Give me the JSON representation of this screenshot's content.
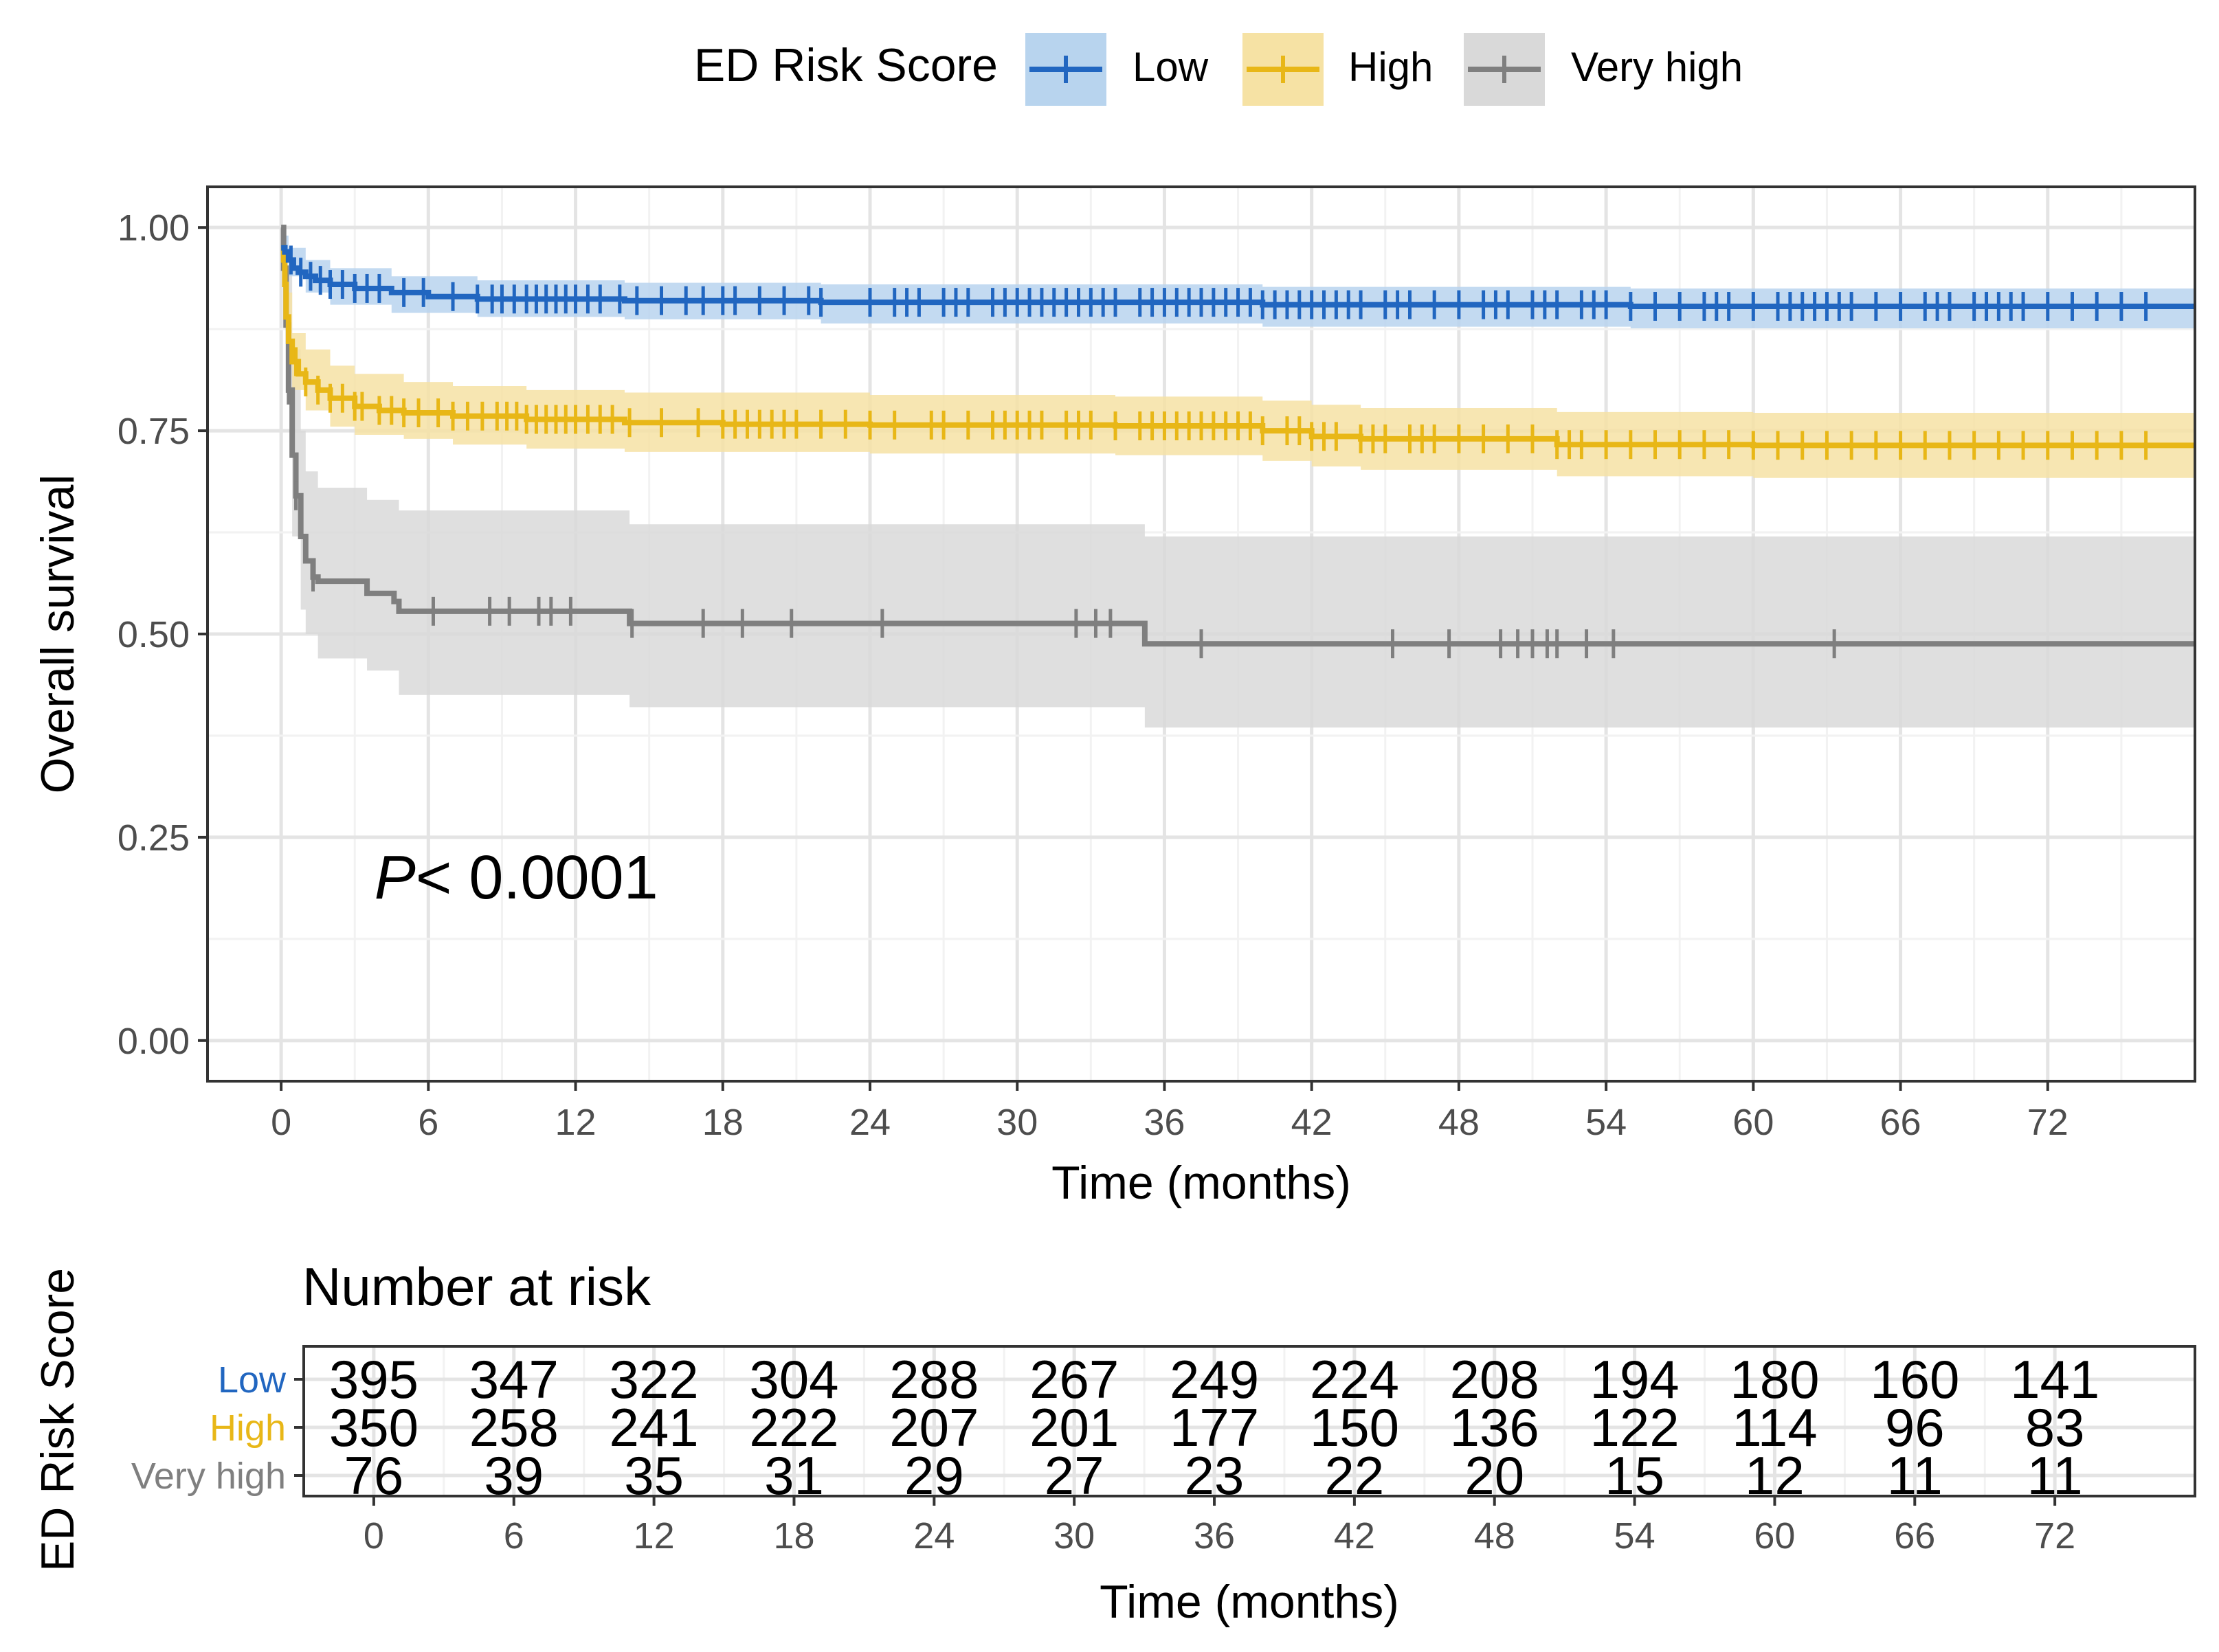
{
  "chart_data": {
    "type": "line",
    "subtype": "kaplan-meier",
    "legend": {
      "title": "ED Risk Score",
      "position": "top",
      "entries": [
        "Low",
        "High",
        "Very high"
      ]
    },
    "xlabel": "Time (months)",
    "ylabel": "Overall survival",
    "xlim": [
      -3,
      78
    ],
    "ylim": [
      -0.05,
      1.05
    ],
    "xticks": [
      0,
      6,
      12,
      18,
      24,
      30,
      36,
      42,
      48,
      54,
      60,
      66,
      72
    ],
    "yticks": [
      0.0,
      0.25,
      0.5,
      0.75,
      1.0
    ],
    "ytick_labels": [
      "0.00",
      "0.25",
      "0.50",
      "0.75",
      "1.00"
    ],
    "annotation": {
      "italic": "P",
      "rest": "< 0.0001",
      "x": 3.8,
      "y": 0.2
    },
    "grid": true,
    "series": [
      {
        "name": "Low",
        "color": "#2166C0",
        "band_color": "#B8D4EE",
        "steps": [
          [
            0,
            0.975
          ],
          [
            0.15,
            0.97
          ],
          [
            0.3,
            0.96
          ],
          [
            0.5,
            0.95
          ],
          [
            0.7,
            0.945
          ],
          [
            1,
            0.94
          ],
          [
            1.4,
            0.935
          ],
          [
            2,
            0.93
          ],
          [
            3,
            0.925
          ],
          [
            4.5,
            0.92
          ],
          [
            6,
            0.915
          ],
          [
            8,
            0.912
          ],
          [
            14,
            0.91
          ],
          [
            22,
            0.908
          ],
          [
            40,
            0.905
          ],
          [
            55,
            0.903
          ],
          [
            78,
            0.903
          ]
        ],
        "band": [
          [
            0,
            0.99,
            0.96
          ],
          [
            0.3,
            0.975,
            0.94
          ],
          [
            1,
            0.96,
            0.92
          ],
          [
            2,
            0.95,
            0.905
          ],
          [
            4.5,
            0.94,
            0.895
          ],
          [
            8,
            0.935,
            0.89
          ],
          [
            14,
            0.932,
            0.887
          ],
          [
            22,
            0.93,
            0.882
          ],
          [
            40,
            0.927,
            0.878
          ],
          [
            55,
            0.925,
            0.876
          ],
          [
            78,
            0.925,
            0.876
          ]
        ],
        "censor_times": [
          0.4,
          0.8,
          1.2,
          1.6,
          2,
          2.5,
          3,
          3.5,
          4,
          5,
          5.8,
          7,
          8,
          8.6,
          9,
          9.5,
          10,
          10.4,
          10.8,
          11.2,
          11.6,
          12,
          12.5,
          13,
          13.8,
          14.5,
          15.5,
          16.5,
          17.2,
          18,
          18.5,
          19.5,
          20.5,
          21.5,
          22,
          24,
          25,
          25.5,
          26,
          27,
          27.5,
          28,
          29,
          29.5,
          30,
          30.5,
          31,
          31.5,
          32,
          32.5,
          33,
          33.5,
          34,
          35,
          35.5,
          36,
          36.5,
          37,
          37.5,
          38,
          38.5,
          39,
          39.5,
          40,
          40.5,
          41,
          41.5,
          42,
          42.5,
          43,
          43.5,
          44,
          45,
          45.5,
          46,
          47,
          48,
          49,
          49.5,
          50,
          51,
          51.5,
          52,
          53,
          53.5,
          54,
          55,
          56,
          57,
          58,
          58.5,
          59,
          60,
          61,
          61.5,
          62,
          62.5,
          63,
          63.5,
          64,
          65,
          66,
          67,
          67.5,
          68,
          69,
          69.5,
          70,
          70.5,
          71,
          72,
          73,
          74,
          75,
          76
        ]
      },
      {
        "name": "High",
        "color": "#E8B717",
        "band_color": "#F6E2A4",
        "steps": [
          [
            0,
            0.975
          ],
          [
            0.1,
            0.96
          ],
          [
            0.15,
            0.93
          ],
          [
            0.2,
            0.89
          ],
          [
            0.3,
            0.86
          ],
          [
            0.45,
            0.835
          ],
          [
            0.7,
            0.82
          ],
          [
            1,
            0.81
          ],
          [
            1.5,
            0.8
          ],
          [
            2,
            0.79
          ],
          [
            3,
            0.78
          ],
          [
            4,
            0.775
          ],
          [
            5,
            0.772
          ],
          [
            7,
            0.768
          ],
          [
            10,
            0.764
          ],
          [
            14,
            0.76
          ],
          [
            18,
            0.758
          ],
          [
            24,
            0.757
          ],
          [
            34,
            0.756
          ],
          [
            40,
            0.75
          ],
          [
            42,
            0.743
          ],
          [
            44,
            0.74
          ],
          [
            52,
            0.733
          ],
          [
            60,
            0.732
          ],
          [
            78,
            0.732
          ]
        ],
        "band": [
          [
            0,
            0.99,
            0.96
          ],
          [
            0.2,
            0.92,
            0.86
          ],
          [
            0.45,
            0.87,
            0.8
          ],
          [
            1,
            0.85,
            0.775
          ],
          [
            2,
            0.83,
            0.755
          ],
          [
            3,
            0.82,
            0.745
          ],
          [
            5,
            0.81,
            0.74
          ],
          [
            7,
            0.805,
            0.733
          ],
          [
            10,
            0.8,
            0.728
          ],
          [
            14,
            0.797,
            0.724
          ],
          [
            24,
            0.794,
            0.722
          ],
          [
            34,
            0.792,
            0.72
          ],
          [
            40,
            0.787,
            0.713
          ],
          [
            42,
            0.782,
            0.706
          ],
          [
            44,
            0.778,
            0.702
          ],
          [
            52,
            0.773,
            0.694
          ],
          [
            60,
            0.772,
            0.692
          ],
          [
            78,
            0.772,
            0.692
          ]
        ],
        "censor_times": [
          0.6,
          1,
          1.5,
          2,
          2.5,
          3,
          3.3,
          4,
          4.5,
          5,
          5.6,
          6.4,
          7,
          7.6,
          8.2,
          8.8,
          9.2,
          9.6,
          10,
          10.4,
          10.8,
          11.2,
          11.6,
          12,
          12.5,
          13,
          13.5,
          14.2,
          15.5,
          17,
          18,
          18.5,
          19,
          19.5,
          20,
          20.5,
          21,
          22,
          23,
          24,
          25,
          26.5,
          27,
          28,
          29,
          29.5,
          30,
          30.5,
          31,
          32,
          32.5,
          33,
          34,
          35,
          35.5,
          36,
          36.5,
          37,
          37.5,
          38,
          38.5,
          39,
          39.5,
          40,
          41,
          41.5,
          42,
          42.5,
          43,
          44,
          44.5,
          45,
          46,
          46.5,
          47,
          48,
          49,
          50,
          51,
          52,
          52.5,
          53,
          54,
          55,
          56,
          57,
          58,
          59,
          60,
          61,
          62,
          63,
          64,
          65,
          66,
          67,
          68,
          69,
          70,
          71,
          72,
          73,
          74,
          75,
          76
        ]
      },
      {
        "name": "Very high",
        "color": "#7F7F7F",
        "band_color": "#D9D9D9",
        "steps": [
          [
            0,
            1.0
          ],
          [
            0.1,
            0.95
          ],
          [
            0.2,
            0.88
          ],
          [
            0.3,
            0.8
          ],
          [
            0.45,
            0.72
          ],
          [
            0.6,
            0.67
          ],
          [
            0.8,
            0.62
          ],
          [
            1,
            0.59
          ],
          [
            1.3,
            0.57
          ],
          [
            1.5,
            0.565
          ],
          [
            3.5,
            0.55
          ],
          [
            4.6,
            0.54
          ],
          [
            4.8,
            0.528
          ],
          [
            14.2,
            0.513
          ],
          [
            35.2,
            0.488
          ],
          [
            78,
            0.488
          ]
        ],
        "band": [
          [
            0,
            1.0,
            0.98
          ],
          [
            0.2,
            0.95,
            0.8
          ],
          [
            0.45,
            0.85,
            0.62
          ],
          [
            0.8,
            0.75,
            0.53
          ],
          [
            1,
            0.7,
            0.5
          ],
          [
            1.5,
            0.68,
            0.47
          ],
          [
            3.5,
            0.665,
            0.455
          ],
          [
            4.8,
            0.652,
            0.425
          ],
          [
            14.2,
            0.635,
            0.41
          ],
          [
            35.2,
            0.62,
            0.385
          ],
          [
            78,
            0.62,
            0.385
          ]
        ],
        "censor_times": [
          0.3,
          0.6,
          1.3,
          6.2,
          8.5,
          9.3,
          10.5,
          11,
          11.8,
          14.3,
          17.2,
          18.8,
          20.8,
          24.5,
          32.4,
          33.2,
          33.8,
          37.5,
          45.3,
          47.6,
          49.7,
          50.4,
          51,
          51.6,
          52,
          53.2,
          54.3,
          63.3
        ]
      }
    ],
    "risk_table": {
      "title": "Number at risk",
      "ylabel": "ED Risk Score",
      "xlabel": "Time (months)",
      "times": [
        0,
        6,
        12,
        18,
        24,
        30,
        36,
        42,
        48,
        54,
        60,
        66,
        72
      ],
      "rows": [
        {
          "name": "Low",
          "color": "#2166C0",
          "values": [
            395,
            347,
            322,
            304,
            288,
            267,
            249,
            224,
            208,
            194,
            180,
            160,
            141
          ]
        },
        {
          "name": "High",
          "color": "#E8B717",
          "values": [
            350,
            258,
            241,
            222,
            207,
            201,
            177,
            150,
            136,
            122,
            114,
            96,
            83
          ]
        },
        {
          "name": "Very high",
          "color": "#7F7F7F",
          "values": [
            76,
            39,
            35,
            31,
            29,
            27,
            23,
            22,
            20,
            15,
            12,
            11,
            11
          ]
        }
      ]
    }
  }
}
